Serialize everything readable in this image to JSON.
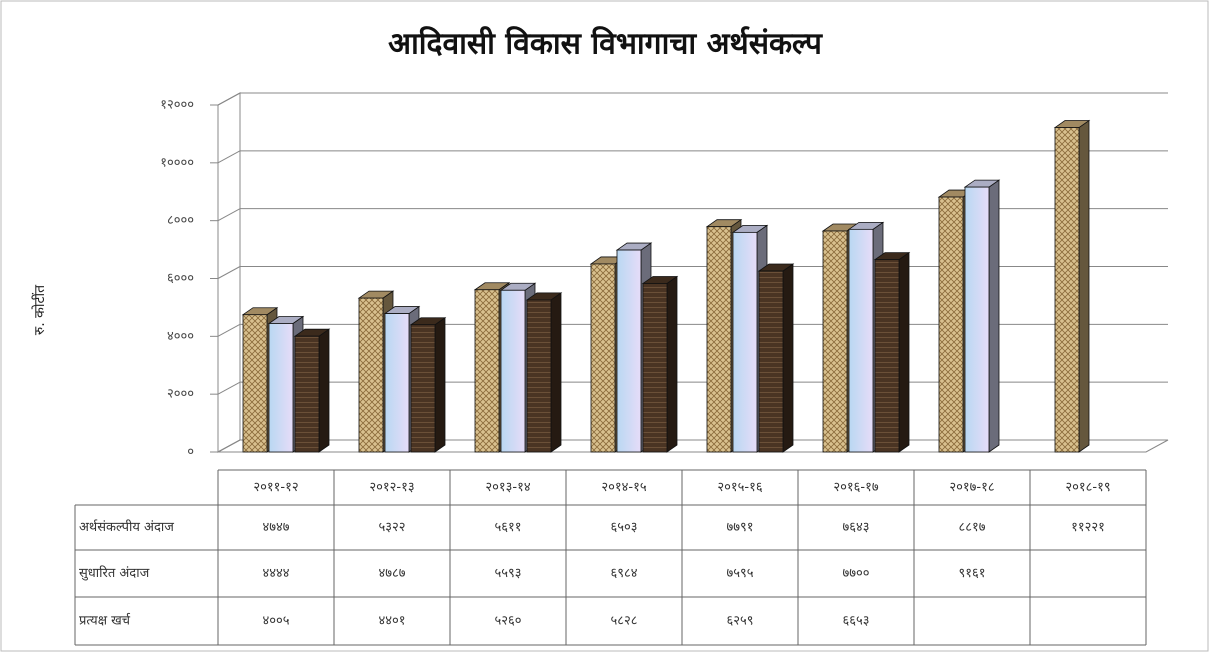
{
  "chart_data": {
    "type": "bar3d",
    "title": "आदिवासी विकास विभागाचा अर्थसंकल्प",
    "y_label": "रु. कोटींत",
    "categories": [
      "२०११-१२",
      "२०१२-१३",
      "२०१३-१४",
      "२०१४-१५",
      "२०१५-१६",
      "२०१६-१७",
      "२०१७-१८",
      "२०१८-१९"
    ],
    "series": [
      {
        "name": "अर्थसंकल्पीय अंदाज",
        "color": "#c9ad7a",
        "values": [
          4747,
          5322,
          5611,
          6503,
          7791,
          7643,
          8817,
          11221
        ],
        "value_labels": [
          "४७४७",
          "५३२२",
          "५६११",
          "६५०३",
          "७७९१",
          "७६४३",
          "८८१७",
          "११२२१"
        ]
      },
      {
        "name": "सुधारित अंदाज",
        "color": "#d6d8f4",
        "values": [
          4444,
          4787,
          5593,
          6984,
          7595,
          7700,
          9161,
          null
        ],
        "value_labels": [
          "४४४४",
          "४७८७",
          "५५९३",
          "६९८४",
          "७५९५",
          "७७००",
          "९१६१",
          null
        ]
      },
      {
        "name": "प्रत्यक्ष खर्च",
        "color": "#4a3423",
        "values": [
          4005,
          4401,
          5260,
          5828,
          6259,
          6653,
          null,
          null
        ],
        "value_labels": [
          "४००५",
          "४४०१",
          "५२६०",
          "५८२८",
          "६२५९",
          "६६५३",
          null,
          null
        ]
      }
    ],
    "ylim": [
      0,
      12000
    ],
    "yticks": [
      {
        "value": 0,
        "label": "०"
      },
      {
        "value": 2000,
        "label": "२०००"
      },
      {
        "value": 4000,
        "label": "४०००"
      },
      {
        "value": 6000,
        "label": "६०००"
      },
      {
        "value": 8000,
        "label": "८०००"
      },
      {
        "value": 10000,
        "label": "१००००"
      },
      {
        "value": 12000,
        "label": "१२०००"
      }
    ],
    "grid": true
  }
}
